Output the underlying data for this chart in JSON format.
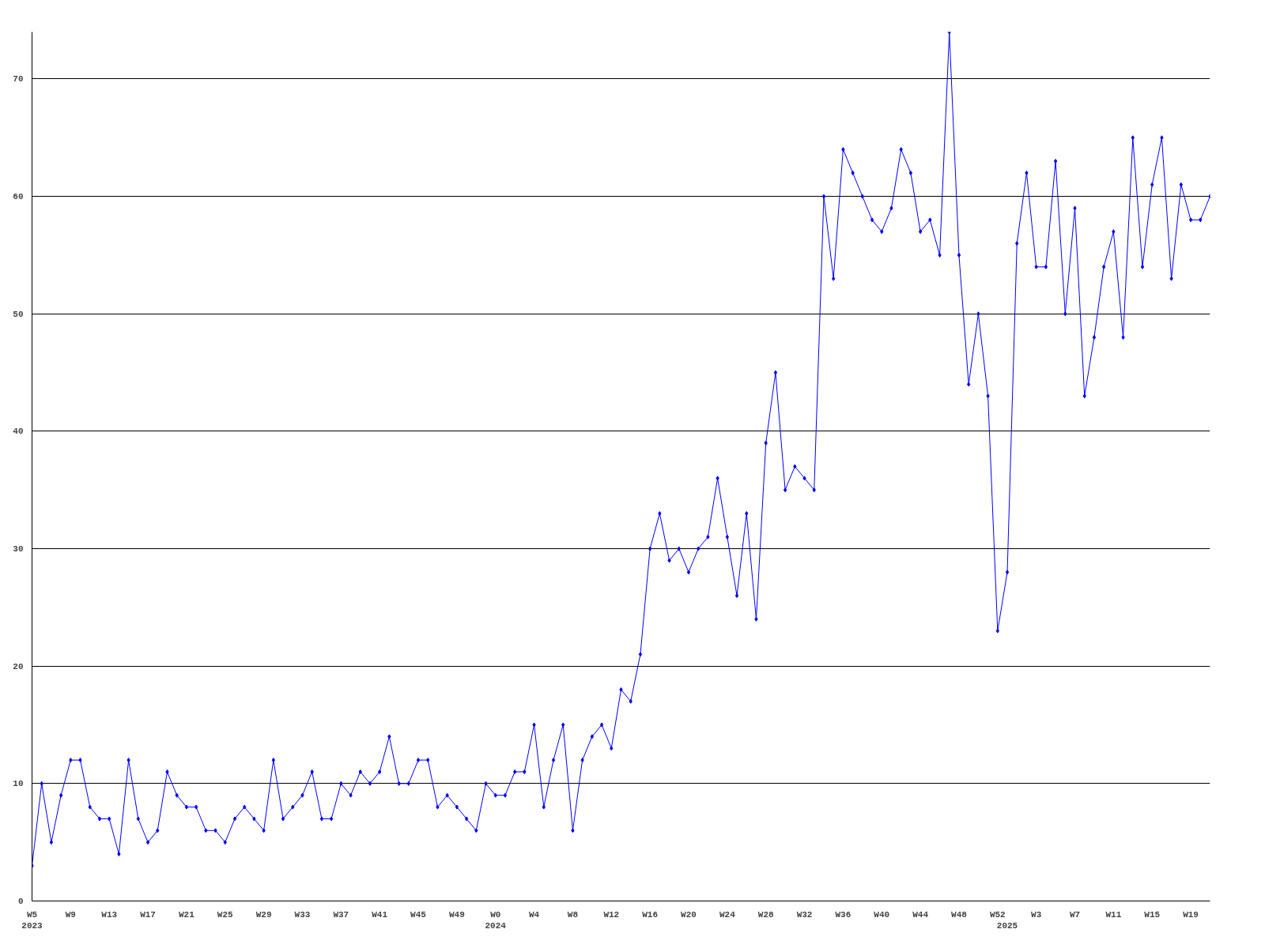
{
  "chart_data": {
    "type": "line",
    "categories": [
      "W5\n2023",
      null,
      null,
      null,
      "W9",
      null,
      null,
      null,
      "W13",
      null,
      null,
      null,
      "W17",
      null,
      null,
      null,
      "W21",
      null,
      null,
      null,
      "W25",
      null,
      null,
      null,
      "W29",
      null,
      null,
      null,
      "W33",
      null,
      null,
      null,
      "W37",
      null,
      null,
      null,
      "W41",
      null,
      null,
      null,
      "W45",
      null,
      null,
      null,
      "W49",
      null,
      null,
      null,
      "W0\n2024",
      null,
      null,
      null,
      "W4",
      null,
      null,
      null,
      "W8",
      null,
      null,
      null,
      "W12",
      null,
      null,
      null,
      "W16",
      null,
      null,
      null,
      "W20",
      null,
      null,
      null,
      "W24",
      null,
      null,
      null,
      "W28",
      null,
      null,
      null,
      "W32",
      null,
      null,
      null,
      "W36",
      null,
      null,
      null,
      "W40",
      null,
      null,
      null,
      "W44",
      null,
      null,
      null,
      "W48",
      null,
      null,
      null,
      "W52",
      "\n2025",
      null,
      null,
      "W3",
      null,
      null,
      null,
      "W7",
      null,
      null,
      null,
      "W11",
      null,
      null,
      null,
      "W15",
      null,
      null,
      null,
      "W19",
      null,
      null
    ],
    "series": [
      {
        "color": "#0000ff",
        "values": [
          3,
          10,
          5,
          9,
          12,
          12,
          8,
          7,
          7,
          4,
          12,
          7,
          5,
          6,
          11,
          9,
          8,
          8,
          6,
          6,
          5,
          7,
          8,
          7,
          6,
          12,
          7,
          8,
          9,
          11,
          7,
          7,
          10,
          9,
          11,
          10,
          11,
          14,
          10,
          10,
          12,
          12,
          8,
          9,
          8,
          7,
          6,
          10,
          9,
          9,
          11,
          11,
          15,
          8,
          12,
          15,
          6,
          12,
          14,
          15,
          13,
          18,
          17,
          21,
          30,
          33,
          29,
          30,
          28,
          30,
          31,
          36,
          31,
          26,
          33,
          24,
          39,
          45,
          35,
          37,
          36,
          35,
          60,
          53,
          64,
          62,
          60,
          58,
          57,
          59,
          64,
          62,
          57,
          58,
          55,
          74,
          55,
          44,
          50,
          43,
          23,
          28,
          56,
          62,
          54,
          54,
          63,
          50,
          59,
          43,
          48,
          54,
          57,
          48,
          65,
          54,
          61,
          65,
          53,
          61,
          58,
          58,
          60
        ]
      }
    ],
    "ylim": [
      0,
      74
    ],
    "yticks": [
      0,
      10,
      20,
      30,
      40,
      50,
      60,
      70
    ],
    "grid": "y",
    "marker": "diamond",
    "line_style": "solid"
  }
}
